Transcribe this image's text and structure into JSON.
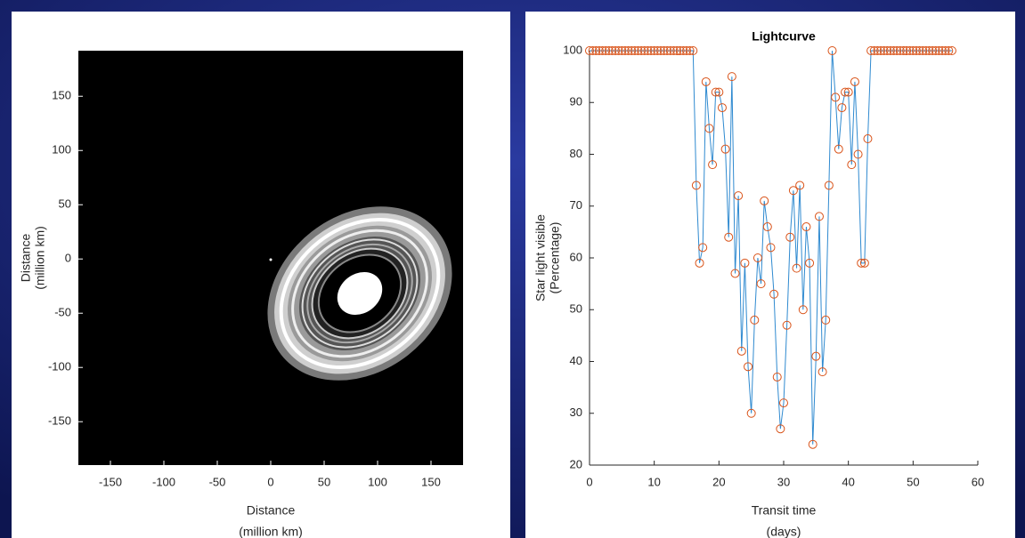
{
  "chart_data": [
    {
      "type": "image",
      "xlabel": [
        "Distance",
        "(million km)"
      ],
      "ylabel": [
        "Distance",
        "(million km)"
      ],
      "xlim": [
        -180,
        180
      ],
      "ylim": [
        -190,
        192
      ],
      "xticks": [
        -150,
        -100,
        -50,
        0,
        50,
        100,
        150
      ],
      "yticks": [
        -150,
        -100,
        -50,
        0,
        50,
        100,
        150
      ]
    },
    {
      "type": "line",
      "title": "Lightcurve",
      "xlabel": [
        "Transit time",
        "(days)"
      ],
      "ylabel": [
        "Star light visible",
        "(Percentage)"
      ],
      "xlim": [
        0,
        60
      ],
      "ylim": [
        20,
        100
      ],
      "xticks": [
        0,
        10,
        20,
        30,
        40,
        50,
        60
      ],
      "yticks": [
        20,
        30,
        40,
        50,
        60,
        70,
        80,
        90,
        100
      ],
      "line_color": "#2f8ad0",
      "marker_color": "#d95319",
      "x": [
        0,
        0.5,
        1,
        1.5,
        2,
        2.5,
        3,
        3.5,
        4,
        4.5,
        5,
        5.5,
        6,
        6.5,
        7,
        7.5,
        8,
        8.5,
        9,
        9.5,
        10,
        10.5,
        11,
        11.5,
        12,
        12.5,
        13,
        13.5,
        14,
        14.5,
        15,
        15.5,
        16,
        16.5,
        17,
        17.5,
        18,
        18.5,
        19,
        19.5,
        20,
        20.5,
        21,
        21.5,
        22,
        22.5,
        23,
        23.5,
        24,
        24.5,
        25,
        25.5,
        26,
        26.5,
        27,
        27.5,
        28,
        28.5,
        29,
        29.5,
        30,
        30.5,
        31,
        31.5,
        32,
        32.5,
        33,
        33.5,
        34,
        34.5,
        35,
        35.5,
        36,
        36.5,
        37,
        37.5,
        38,
        38.5,
        39,
        39.5,
        40,
        40.5,
        41,
        41.5,
        42,
        42.5,
        43,
        43.5,
        44,
        44.5,
        45,
        45.5,
        46,
        46.5,
        47,
        47.5,
        48,
        48.5,
        49,
        49.5,
        50,
        50.5,
        51,
        51.5,
        52,
        52.5,
        53,
        53.5,
        54,
        54.5,
        55,
        55.5,
        56
      ],
      "values": [
        100,
        100,
        100,
        100,
        100,
        100,
        100,
        100,
        100,
        100,
        100,
        100,
        100,
        100,
        100,
        100,
        100,
        100,
        100,
        100,
        100,
        100,
        100,
        100,
        100,
        100,
        100,
        100,
        100,
        100,
        100,
        100,
        100,
        74,
        59,
        62,
        94,
        85,
        78,
        92,
        92,
        89,
        81,
        64,
        95,
        57,
        72,
        42,
        59,
        39,
        30,
        48,
        60,
        55,
        71,
        66,
        62,
        53,
        37,
        27,
        32,
        47,
        64,
        73,
        58,
        74,
        50,
        66,
        59,
        24,
        41,
        68,
        38,
        48,
        74,
        100,
        91,
        81,
        89,
        92,
        92,
        78,
        94,
        80,
        59,
        59,
        83,
        100,
        100,
        100,
        100,
        100,
        100,
        100,
        100,
        100,
        100,
        100,
        100,
        100,
        100,
        100,
        100,
        100,
        100,
        100,
        100,
        100,
        100,
        100,
        100,
        100,
        100
      ]
    }
  ]
}
